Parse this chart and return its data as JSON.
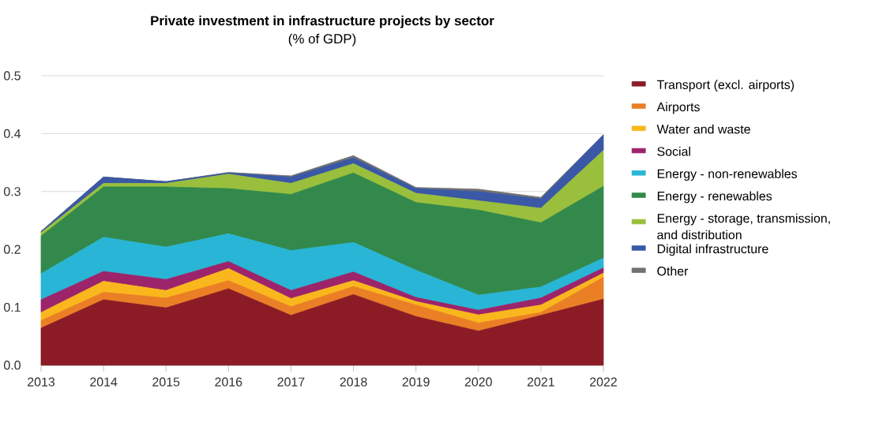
{
  "chart_data": {
    "type": "area",
    "stacked": true,
    "title": "Private investment in infrastructure projects by sector",
    "subtitle": "(% of GDP)",
    "x": [
      2013,
      2014,
      2015,
      2016,
      2017,
      2018,
      2019,
      2020,
      2021,
      2022
    ],
    "xlim": [
      2013,
      2022
    ],
    "xticks": [
      2013,
      2014,
      2015,
      2016,
      2017,
      2018,
      2019,
      2020,
      2021,
      2022
    ],
    "ylim": [
      0,
      0.5
    ],
    "yticks": [
      {
        "value": 0,
        "label": "0.0"
      },
      0.1,
      0.2,
      0.3,
      0.4,
      0.5
    ],
    "grid": "y",
    "legend": "right",
    "series": [
      {
        "name": "Transport (excl. airports)",
        "color": "#8b1c26",
        "values": [
          0.064,
          0.113,
          0.099,
          0.132,
          0.086,
          0.122,
          0.084,
          0.059,
          0.086,
          0.114
        ]
      },
      {
        "name": "Airports",
        "color": "#ea7f25",
        "values": [
          0.013,
          0.013,
          0.017,
          0.014,
          0.015,
          0.014,
          0.02,
          0.014,
          0.005,
          0.038
        ]
      },
      {
        "name": "Water and waste",
        "color": "#f9b71d",
        "values": [
          0.014,
          0.019,
          0.013,
          0.021,
          0.014,
          0.01,
          0.006,
          0.014,
          0.013,
          0.007
        ]
      },
      {
        "name": "Social",
        "color": "#9c246b",
        "values": [
          0.022,
          0.017,
          0.019,
          0.012,
          0.014,
          0.015,
          0.007,
          0.008,
          0.012,
          0.009
        ]
      },
      {
        "name": "Energy - non-renewables",
        "color": "#29b5d5",
        "values": [
          0.045,
          0.059,
          0.056,
          0.048,
          0.069,
          0.051,
          0.047,
          0.026,
          0.019,
          0.017
        ]
      },
      {
        "name": "Energy - renewables",
        "color": "#33894b",
        "values": [
          0.065,
          0.087,
          0.104,
          0.078,
          0.097,
          0.12,
          0.117,
          0.147,
          0.111,
          0.124
        ]
      },
      {
        "name": "Energy - storage, transmission, and distribution",
        "color": "#99bf3c",
        "values": [
          0.006,
          0.006,
          0.006,
          0.025,
          0.019,
          0.016,
          0.016,
          0.016,
          0.025,
          0.062
        ]
      },
      {
        "name": "Digital infrastructure",
        "color": "#3a58a6",
        "values": [
          0.002,
          0.011,
          0.003,
          0.002,
          0.011,
          0.01,
          0.008,
          0.016,
          0.016,
          0.027
        ]
      },
      {
        "name": "Other",
        "color": "#717171",
        "values": [
          0.0,
          0.0,
          0.0,
          0.001,
          0.002,
          0.004,
          0.002,
          0.004,
          0.003,
          0.0
        ]
      }
    ]
  }
}
